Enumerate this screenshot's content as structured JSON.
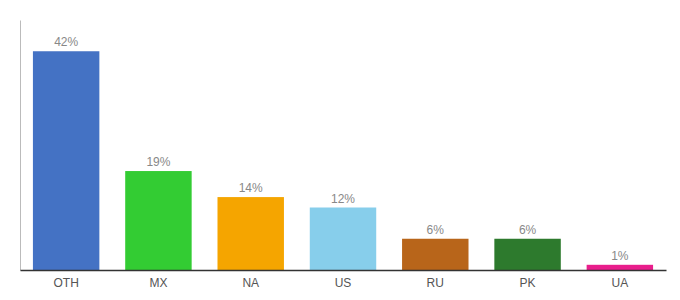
{
  "chart_data": {
    "type": "bar",
    "categories": [
      "OTH",
      "MX",
      "NA",
      "US",
      "RU",
      "PK",
      "UA"
    ],
    "values": [
      42,
      19,
      14,
      12,
      6,
      6,
      1
    ],
    "value_labels": [
      "42%",
      "19%",
      "14%",
      "12%",
      "6%",
      "6%",
      "1%"
    ],
    "colors": [
      "#4472c4",
      "#33cc33",
      "#f5a500",
      "#87ceeb",
      "#b8651a",
      "#2d7a2d",
      "#e91e8c"
    ],
    "ylim": [
      0,
      48
    ],
    "data_labels": true,
    "tick_labels": "x"
  }
}
